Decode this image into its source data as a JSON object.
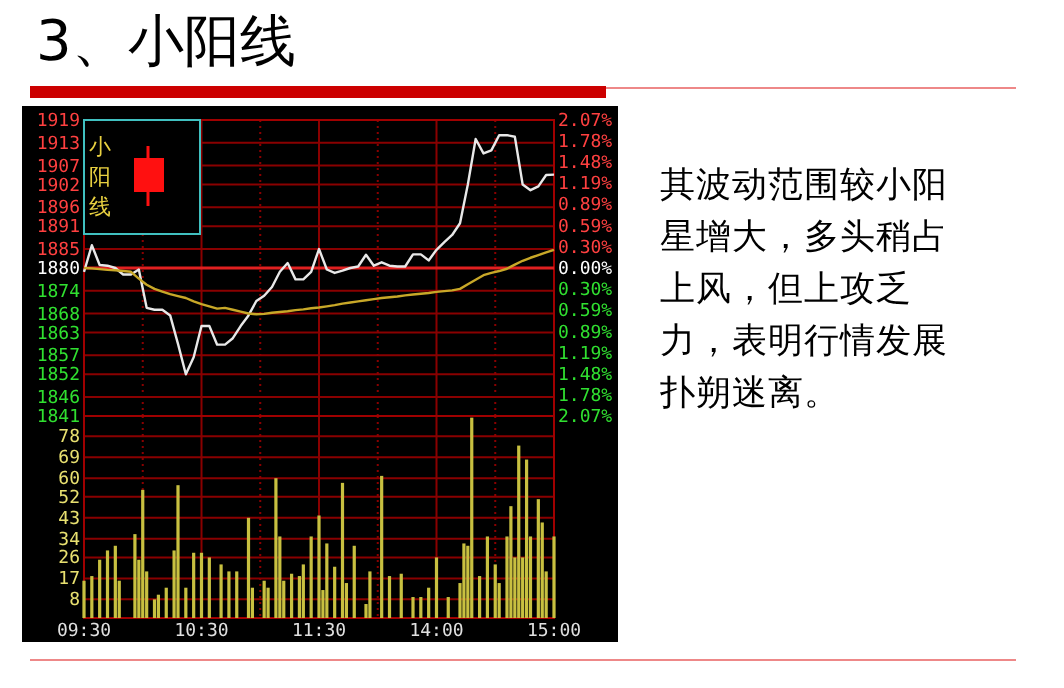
{
  "chart_data": [
    {
      "type": "line",
      "title": "3、小阳线",
      "annotations": [
        "小阳线",
        "其波动范围较小阳星增大，多头稍占上风，但上攻乏力，表明行情发展扑朔迷离。"
      ],
      "categories": [
        null,
        null,
        null,
        null,
        null,
        null,
        null,
        null,
        null,
        null,
        null,
        null,
        null,
        null,
        null,
        null,
        null,
        null,
        null,
        null,
        null,
        null,
        null,
        null,
        null,
        null,
        null,
        null,
        null,
        null,
        null,
        null,
        null,
        null,
        null,
        null,
        null,
        null,
        null,
        null,
        null,
        null,
        null,
        null,
        null,
        null,
        null,
        null,
        null,
        null,
        null,
        null,
        null,
        null,
        null,
        null,
        null,
        null,
        null,
        null,
        null
      ],
      "series": [
        {
          "color": "#e8e8e8",
          "values": [
            1879,
            1886,
            1880.8,
            1880.6,
            1880,
            1878.3,
            1878.3,
            1879.6,
            1869.5,
            1869,
            1869,
            1867.5,
            1860,
            1852,
            1856.5,
            1864.7,
            1864.7,
            1859.8,
            1859.8,
            1861.5,
            1864.7,
            1867.5,
            1871.3,
            1872.7,
            1875,
            1879,
            1881.3,
            1877,
            1877,
            1879,
            1885,
            1879.6,
            1878.7,
            1879.3,
            1880,
            1880.4,
            1883.5,
            1880.6,
            1881.5,
            1880.6,
            1880.4,
            1880.4,
            1883.6,
            1883.6,
            1882,
            1884.8,
            1886.8,
            1888.7,
            1891.8,
            1902,
            1914,
            1910.2,
            1911,
            1915,
            1915,
            1914.6,
            1902,
            1900.5,
            1901.5,
            1904.5,
            1904.6
          ]
        },
        {
          "color": "#c8a828",
          "values": [
            1880,
            1879.9,
            1879.7,
            1879.5,
            1879.4,
            1879.2,
            1879,
            1877.2,
            1875.6,
            1874.5,
            1873.8,
            1873.1,
            1872.6,
            1872.1,
            1871.2,
            1870.5,
            1869.9,
            1869.3,
            1869.5,
            1869,
            1868.5,
            1868,
            1867.8,
            1867.9,
            1868.2,
            1868.4,
            1868.6,
            1868.9,
            1869.1,
            1869.4,
            1869.6,
            1869.9,
            1870.2,
            1870.6,
            1870.9,
            1871.2,
            1871.5,
            1871.8,
            1872.1,
            1872.3,
            1872.5,
            1872.8,
            1873,
            1873.2,
            1873.4,
            1873.7,
            1873.9,
            1874.1,
            1874.5,
            1875.7,
            1876.9,
            1878.1,
            1878.7,
            1879.2,
            1879.8,
            1880.9,
            1881.9,
            1882.7,
            1883.4,
            1884.1,
            1884.8
          ]
        }
      ],
      "ylim": [
        1841,
        1919
      ],
      "yticks": [
        1841,
        1846,
        1852,
        1857,
        1863,
        1868,
        1874,
        1880,
        1885,
        1891,
        1896,
        1902,
        1907,
        1913,
        1919
      ],
      "y2lim": [
        -2.07,
        2.07
      ],
      "y2ticks": [
        {
          "value": -2.07,
          "label": "2.07%"
        },
        {
          "value": -1.78,
          "label": "1.78%"
        },
        {
          "value": -1.48,
          "label": "1.48%"
        },
        {
          "value": -1.19,
          "label": "1.19%"
        },
        {
          "value": -0.89,
          "label": "0.89%"
        },
        {
          "value": -0.59,
          "label": "0.59%"
        },
        {
          "value": -0.3,
          "label": "0.30%"
        },
        {
          "value": 0,
          "label": "0.00%"
        },
        {
          "value": 0.3,
          "label": "0.30%"
        },
        {
          "value": 0.59,
          "label": "0.59%"
        },
        {
          "value": 0.89,
          "label": "0.89%"
        },
        {
          "value": 1.19,
          "label": "1.19%"
        },
        {
          "value": 1.48,
          "label": "1.48%"
        },
        {
          "value": 1.78,
          "label": "1.78%"
        },
        {
          "value": 2.07,
          "label": "2.07%"
        }
      ],
      "ref_lines": [
        {
          "axis": "y",
          "value": 1880,
          "color": "#e02020"
        }
      ],
      "grid": true,
      "tick_labels": "y"
    },
    {
      "type": "bar",
      "color": "#c8c040",
      "categories": [
        "09:30",
        null,
        null,
        null,
        null,
        null,
        null,
        null,
        null,
        null,
        null,
        null,
        null,
        null,
        null,
        null,
        null,
        null,
        null,
        null,
        null,
        null,
        null,
        null,
        null,
        null,
        null,
        null,
        null,
        null,
        "10:30",
        null,
        null,
        null,
        null,
        null,
        null,
        null,
        null,
        null,
        null,
        null,
        null,
        null,
        null,
        null,
        null,
        null,
        null,
        null,
        null,
        null,
        null,
        null,
        null,
        null,
        null,
        null,
        null,
        null,
        "11:30",
        null,
        null,
        null,
        null,
        null,
        null,
        null,
        null,
        null,
        null,
        null,
        null,
        null,
        null,
        null,
        null,
        null,
        null,
        null,
        null,
        null,
        null,
        null,
        null,
        null,
        null,
        null,
        null,
        null,
        "14:00",
        null,
        null,
        null,
        null,
        null,
        null,
        null,
        null,
        null,
        null,
        null,
        null,
        null,
        null,
        null,
        null,
        null,
        null,
        null,
        null,
        null,
        null,
        null,
        null,
        null,
        null,
        null,
        null,
        null,
        "15:00"
      ],
      "values": [
        16,
        null,
        18,
        null,
        25,
        null,
        29,
        null,
        31,
        16,
        null,
        null,
        null,
        36,
        25,
        55,
        20,
        null,
        8,
        10,
        null,
        13,
        null,
        29,
        57,
        null,
        13,
        null,
        28,
        null,
        28,
        null,
        26,
        null,
        null,
        23,
        null,
        20,
        null,
        20,
        null,
        null,
        43,
        13,
        null,
        null,
        16,
        13,
        null,
        60,
        35,
        16,
        null,
        19,
        null,
        18,
        23,
        null,
        35,
        null,
        44,
        12,
        32,
        null,
        22,
        null,
        58,
        15,
        null,
        31,
        null,
        null,
        6,
        20,
        null,
        null,
        61,
        null,
        18,
        null,
        null,
        19,
        null,
        null,
        9,
        null,
        9,
        null,
        13,
        null,
        26,
        null,
        null,
        9,
        null,
        null,
        15,
        32,
        31,
        86,
        null,
        18,
        null,
        35,
        null,
        23,
        15,
        null,
        35,
        48,
        26,
        74,
        26,
        68,
        35,
        null,
        51,
        41,
        20,
        null,
        35
      ],
      "ylim": [
        0,
        86.7
      ],
      "yticks": [
        8,
        17,
        26,
        34,
        43,
        52,
        60,
        69,
        78
      ],
      "grid": true
    }
  ]
}
